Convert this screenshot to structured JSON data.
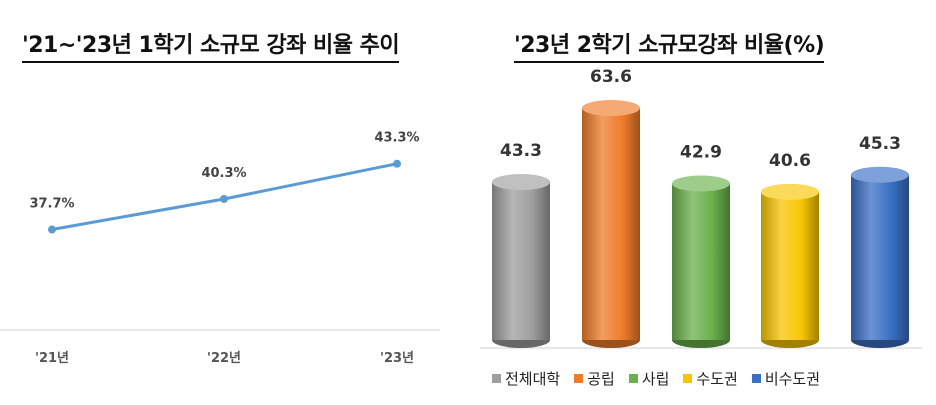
{
  "chart_data": [
    {
      "type": "line",
      "title": "'21~'23년 1학기 소규모 강좌 비율 추이",
      "categories": [
        "'21년",
        "'22년",
        "'23년"
      ],
      "values": [
        37.7,
        40.3,
        43.3
      ],
      "data_labels": [
        "37.7%",
        "40.3%",
        "43.3%"
      ],
      "ylim": [
        30,
        50
      ],
      "grid": false,
      "color": "#5b9bd5"
    },
    {
      "type": "bar",
      "title": "'23년 2학기 소규모강좌 비율(%)",
      "categories": [
        "전체대학",
        "공립",
        "사립",
        "수도권",
        "비수도권"
      ],
      "values": [
        43.3,
        63.6,
        42.9,
        40.6,
        45.3
      ],
      "data_labels": [
        "43.3",
        "63.6",
        "42.9",
        "40.6",
        "45.3"
      ],
      "colors": [
        "#9e9e9e",
        "#ef7c2a",
        "#6ab04c",
        "#f7c600",
        "#3a6fc4"
      ],
      "ylim": [
        0,
        70
      ],
      "grid": false,
      "legend_position": "bottom"
    }
  ]
}
